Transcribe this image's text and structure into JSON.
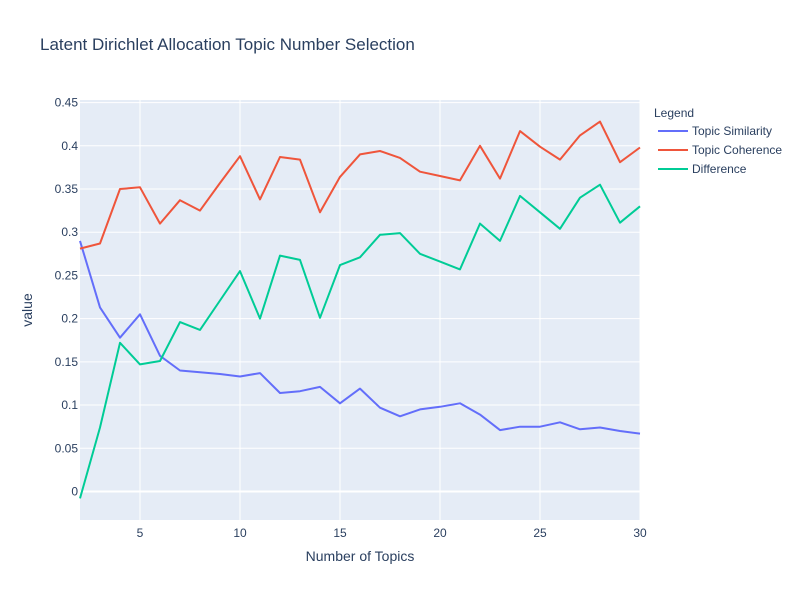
{
  "chart_data": {
    "type": "line",
    "title": "Latent Dirichlet Allocation Topic Number Selection",
    "xlabel": "Number of Topics",
    "ylabel": "value",
    "xlim": [
      2,
      30
    ],
    "ylim": [
      -0.033,
      0.453
    ],
    "x_ticks": [
      5,
      10,
      15,
      20,
      25,
      30
    ],
    "y_ticks": [
      0,
      0.05,
      0.1,
      0.15,
      0.2,
      0.25,
      0.3,
      0.35,
      0.4,
      0.45
    ],
    "x_tick_labels": [
      "5",
      "10",
      "15",
      "20",
      "25",
      "30"
    ],
    "y_tick_labels": [
      "0",
      "0.05",
      "0.1",
      "0.15",
      "0.2",
      "0.25",
      "0.3",
      "0.35",
      "0.4",
      "0.45"
    ],
    "grid": true,
    "legend_title": "Legend",
    "legend_position": "right",
    "x": [
      2,
      3,
      4,
      5,
      6,
      7,
      8,
      9,
      10,
      11,
      12,
      13,
      14,
      15,
      16,
      17,
      18,
      19,
      20,
      21,
      22,
      23,
      24,
      25,
      26,
      27,
      28,
      29,
      30
    ],
    "series": [
      {
        "name": "Topic Similarity",
        "color": "#636efa",
        "values": [
          0.29,
          0.213,
          0.178,
          0.205,
          0.157,
          0.14,
          0.138,
          0.136,
          0.133,
          0.137,
          0.114,
          0.116,
          0.121,
          0.102,
          0.119,
          0.097,
          0.087,
          0.095,
          0.098,
          0.102,
          0.089,
          0.071,
          0.075,
          0.075,
          0.08,
          0.072,
          0.074,
          0.07,
          0.067
        ]
      },
      {
        "name": "Topic Coherence",
        "color": "#EF553B",
        "values": [
          0.281,
          0.287,
          0.35,
          0.352,
          0.31,
          0.337,
          0.325,
          0.357,
          0.388,
          0.338,
          0.387,
          0.384,
          0.323,
          0.364,
          0.39,
          0.394,
          0.386,
          0.37,
          0.365,
          0.36,
          0.4,
          0.362,
          0.417,
          0.399,
          0.384,
          0.412,
          0.428,
          0.381,
          0.398
        ]
      },
      {
        "name": "Difference",
        "color": "#00cc96",
        "values": [
          -0.008,
          0.074,
          0.172,
          0.147,
          0.151,
          0.196,
          0.187,
          0.221,
          0.255,
          0.2,
          0.273,
          0.268,
          0.201,
          0.262,
          0.271,
          0.297,
          0.299,
          0.275,
          0.266,
          0.257,
          0.31,
          0.29,
          0.342,
          0.323,
          0.304,
          0.34,
          0.355,
          0.311,
          0.33
        ]
      }
    ]
  }
}
